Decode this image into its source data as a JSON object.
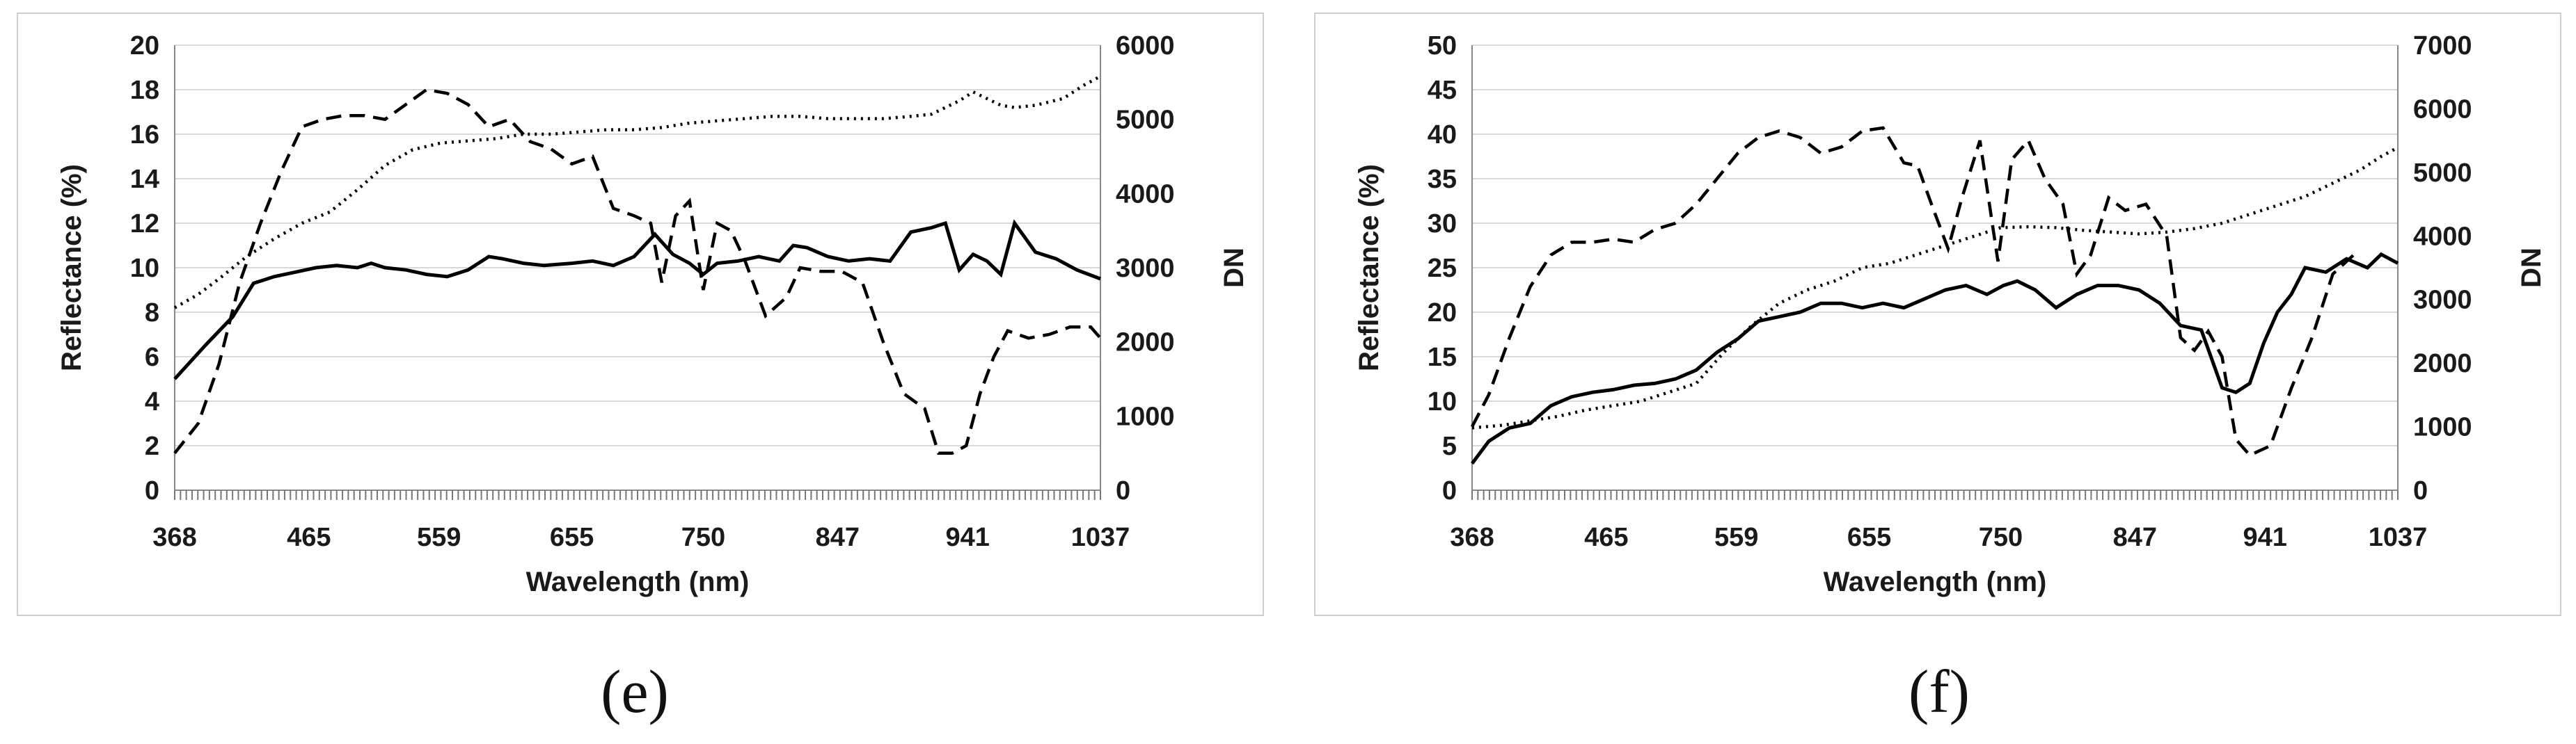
{
  "chart_data": [
    {
      "type": "line",
      "id": "e",
      "caption": "(e)",
      "xlabel": "Wavelength (nm)",
      "ylabel": "Reflectance (%)",
      "y2label": "DN",
      "xlim": [
        368,
        1037
      ],
      "xticks": [
        368,
        465,
        559,
        655,
        750,
        847,
        941,
        1037
      ],
      "ylim": [
        0,
        20
      ],
      "yticks": [
        0,
        2,
        4,
        6,
        8,
        10,
        12,
        14,
        16,
        18,
        20
      ],
      "y2lim": [
        0,
        6000
      ],
      "y2ticks": [
        0,
        1000,
        2000,
        3000,
        4000,
        5000,
        6000
      ],
      "grid": true,
      "series": [
        {
          "style": "solid",
          "axis": "left",
          "x": [
            368,
            390,
            410,
            425,
            440,
            455,
            470,
            485,
            500,
            510,
            520,
            535,
            550,
            565,
            580,
            595,
            605,
            620,
            635,
            655,
            670,
            685,
            700,
            715,
            728,
            740,
            750,
            760,
            775,
            790,
            805,
            815,
            825,
            840,
            855,
            870,
            885,
            900,
            915,
            925,
            935,
            945,
            955,
            965,
            975,
            990,
            1005,
            1020,
            1037
          ],
          "values": [
            5.0,
            6.5,
            7.8,
            9.3,
            9.6,
            9.8,
            10.0,
            10.1,
            10.0,
            10.2,
            10.0,
            9.9,
            9.7,
            9.6,
            9.9,
            10.5,
            10.4,
            10.2,
            10.1,
            10.2,
            10.3,
            10.1,
            10.5,
            11.5,
            10.6,
            10.2,
            9.7,
            10.2,
            10.3,
            10.5,
            10.3,
            11.0,
            10.9,
            10.5,
            10.3,
            10.4,
            10.3,
            11.6,
            11.8,
            12.0,
            9.9,
            10.6,
            10.3,
            9.7,
            12.0,
            10.7,
            10.4,
            9.9,
            9.5
          ]
        },
        {
          "style": "dashed",
          "axis": "right",
          "x": [
            368,
            385,
            400,
            415,
            430,
            445,
            460,
            475,
            490,
            505,
            520,
            535,
            550,
            565,
            580,
            595,
            610,
            625,
            640,
            655,
            670,
            685,
            700,
            712,
            720,
            730,
            740,
            750,
            760,
            770,
            780,
            795,
            810,
            820,
            835,
            850,
            865,
            880,
            895,
            910,
            920,
            930,
            940,
            950,
            960,
            970,
            985,
            1000,
            1015,
            1030,
            1037
          ],
          "values": [
            500,
            900,
            1700,
            2800,
            3600,
            4300,
            4900,
            5000,
            5050,
            5050,
            5000,
            5200,
            5400,
            5350,
            5200,
            4900,
            5000,
            4700,
            4600,
            4400,
            4500,
            3800,
            3700,
            3600,
            2800,
            3700,
            3900,
            2700,
            3600,
            3500,
            3100,
            2350,
            2600,
            3000,
            2950,
            2950,
            2800,
            2000,
            1300,
            1100,
            500,
            500,
            600,
            1300,
            1800,
            2150,
            2050,
            2100,
            2200,
            2200,
            2050
          ]
        },
        {
          "style": "dotted",
          "axis": "left",
          "x": [
            368,
            385,
            400,
            420,
            440,
            460,
            480,
            500,
            520,
            540,
            560,
            580,
            600,
            620,
            640,
            660,
            680,
            700,
            720,
            740,
            760,
            780,
            800,
            820,
            840,
            860,
            880,
            900,
            915,
            925,
            935,
            945,
            955,
            965,
            975,
            990,
            1010,
            1025,
            1037
          ],
          "values": [
            8.2,
            8.8,
            9.5,
            10.5,
            11.3,
            12.0,
            12.5,
            13.5,
            14.6,
            15.3,
            15.6,
            15.7,
            15.8,
            16.0,
            16.0,
            16.1,
            16.2,
            16.2,
            16.3,
            16.5,
            16.6,
            16.7,
            16.8,
            16.8,
            16.7,
            16.7,
            16.7,
            16.8,
            16.9,
            17.2,
            17.5,
            17.9,
            17.6,
            17.3,
            17.2,
            17.3,
            17.6,
            18.2,
            18.6
          ]
        }
      ]
    },
    {
      "type": "line",
      "id": "f",
      "caption": "(f)",
      "xlabel": "Wavelength (nm)",
      "ylabel": "Reflectance (%)",
      "y2label": "DN",
      "xlim": [
        368,
        1037
      ],
      "xticks": [
        368,
        465,
        559,
        655,
        750,
        847,
        941,
        1037
      ],
      "ylim": [
        0,
        50
      ],
      "yticks": [
        0,
        5,
        10,
        15,
        20,
        25,
        30,
        35,
        40,
        45,
        50
      ],
      "y2lim": [
        0,
        7000
      ],
      "y2ticks": [
        0,
        1000,
        2000,
        3000,
        4000,
        5000,
        6000,
        7000
      ],
      "grid": true,
      "series": [
        {
          "style": "solid",
          "axis": "left",
          "x": [
            368,
            380,
            395,
            410,
            425,
            440,
            455,
            470,
            485,
            500,
            515,
            530,
            545,
            560,
            575,
            590,
            605,
            620,
            635,
            650,
            665,
            680,
            695,
            710,
            725,
            740,
            752,
            762,
            775,
            790,
            805,
            820,
            835,
            850,
            865,
            880,
            895,
            910,
            920,
            930,
            940,
            950,
            960,
            970,
            985,
            1000,
            1015,
            1025,
            1037
          ],
          "values": [
            3.0,
            5.5,
            7.0,
            7.5,
            9.5,
            10.5,
            11.0,
            11.3,
            11.8,
            12.0,
            12.5,
            13.5,
            15.5,
            17.0,
            19.0,
            19.5,
            20.0,
            21.0,
            21.0,
            20.5,
            21.0,
            20.5,
            21.5,
            22.5,
            23.0,
            22.0,
            23.0,
            23.5,
            22.5,
            20.5,
            22.0,
            23.0,
            23.0,
            22.5,
            21.0,
            18.5,
            18.0,
            11.5,
            11.0,
            12.0,
            16.5,
            20.0,
            22.0,
            25.0,
            24.5,
            26.0,
            25.0,
            26.5,
            25.5
          ]
        },
        {
          "style": "dashed",
          "axis": "right",
          "x": [
            368,
            380,
            395,
            410,
            425,
            440,
            455,
            470,
            485,
            500,
            515,
            530,
            545,
            560,
            575,
            590,
            605,
            620,
            635,
            650,
            665,
            680,
            690,
            700,
            712,
            722,
            735,
            748,
            758,
            770,
            782,
            795,
            805,
            815,
            828,
            840,
            855,
            870,
            880,
            890,
            900,
            910,
            920,
            930,
            945,
            960,
            975,
            990,
            1005
          ],
          "values": [
            1000,
            1500,
            2400,
            3200,
            3700,
            3900,
            3900,
            3950,
            3900,
            4100,
            4200,
            4500,
            4900,
            5300,
            5550,
            5650,
            5550,
            5300,
            5400,
            5650,
            5700,
            5150,
            5100,
            4500,
            3800,
            4600,
            5500,
            3600,
            5200,
            5500,
            4900,
            4500,
            3400,
            3700,
            4600,
            4400,
            4500,
            4000,
            2400,
            2200,
            2500,
            2100,
            800,
            550,
            700,
            1600,
            2400,
            3400,
            3700
          ]
        },
        {
          "style": "dotted",
          "axis": "left",
          "x": [
            368,
            390,
            410,
            430,
            450,
            470,
            490,
            510,
            530,
            550,
            570,
            590,
            610,
            630,
            650,
            670,
            690,
            710,
            730,
            750,
            770,
            790,
            810,
            830,
            850,
            870,
            890,
            910,
            930,
            950,
            970,
            990,
            1010,
            1025,
            1037
          ],
          "values": [
            7.0,
            7.3,
            7.8,
            8.3,
            9.0,
            9.5,
            10.0,
            11.0,
            12.0,
            15.5,
            18.5,
            21.0,
            22.5,
            23.5,
            25.0,
            25.5,
            26.5,
            27.5,
            28.5,
            29.5,
            29.6,
            29.5,
            29.2,
            29.0,
            28.8,
            29.0,
            29.4,
            30.0,
            31.0,
            32.0,
            33.0,
            34.5,
            36.0,
            37.5,
            38.5
          ]
        }
      ]
    }
  ]
}
